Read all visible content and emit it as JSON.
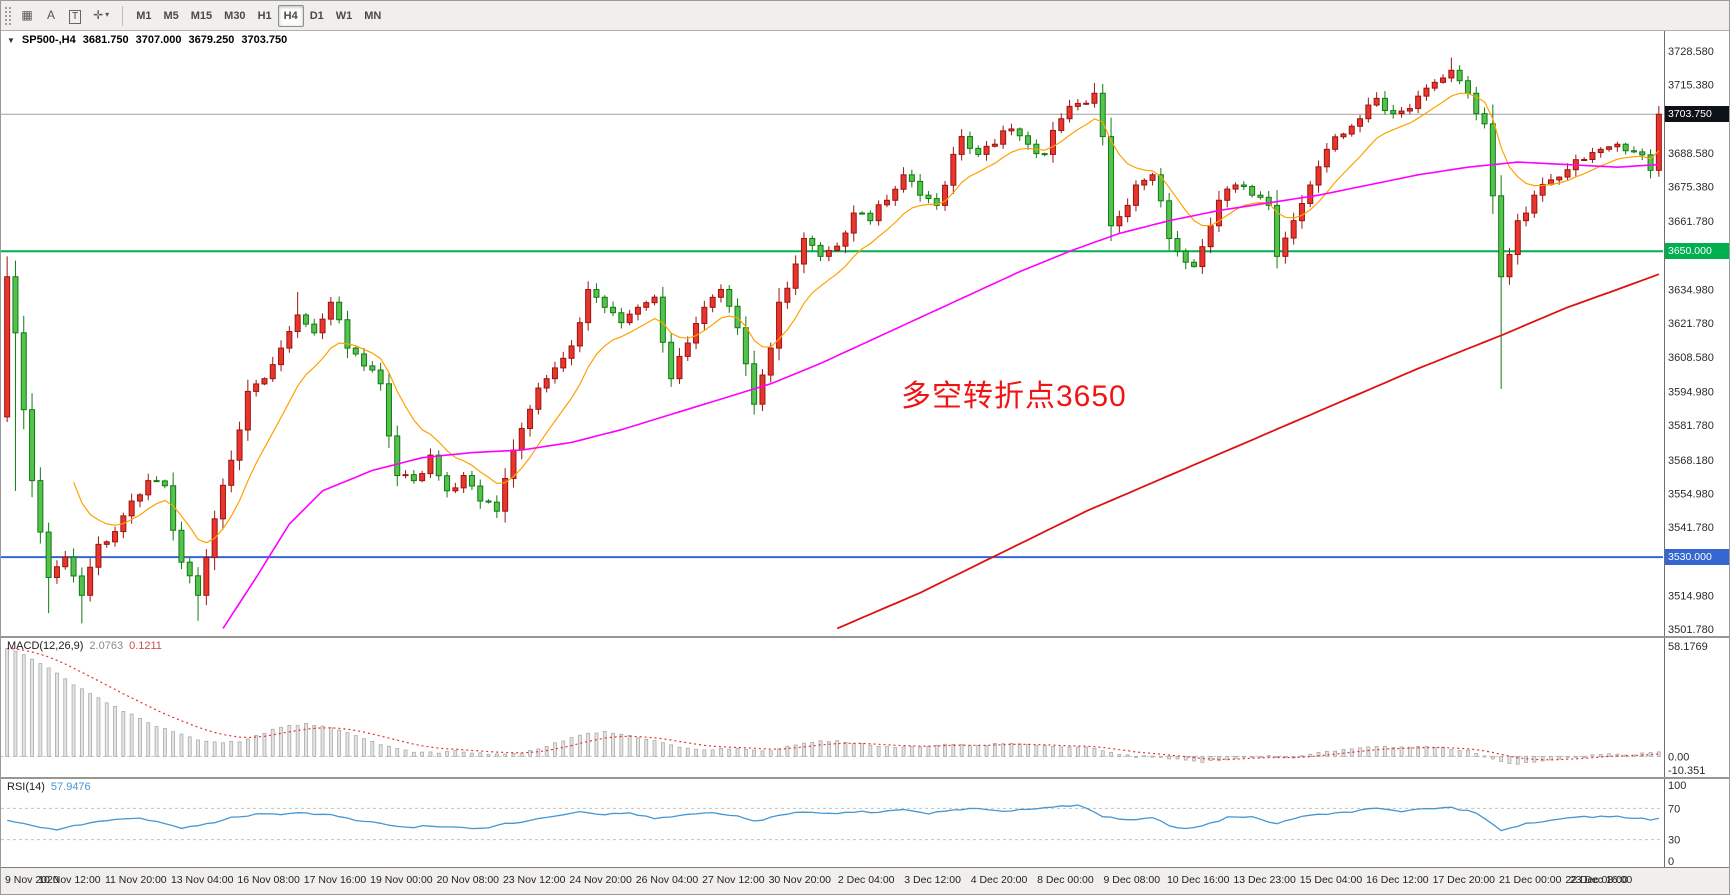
{
  "toolbar": {
    "icon_buttons": [
      {
        "name": "chart-grid",
        "glyph": "▦"
      },
      {
        "name": "cursor-a",
        "glyph": "A"
      },
      {
        "name": "text-label",
        "glyph": "T",
        "boxed": true
      },
      {
        "name": "draw-tools",
        "glyph": "✛",
        "caret": "▾"
      }
    ],
    "timeframes": [
      {
        "label": "M1"
      },
      {
        "label": "M5"
      },
      {
        "label": "M15"
      },
      {
        "label": "M30"
      },
      {
        "label": "H1"
      },
      {
        "label": "H4",
        "active": true
      },
      {
        "label": "D1"
      },
      {
        "label": "W1"
      },
      {
        "label": "MN"
      }
    ]
  },
  "chart": {
    "expander_icon": "▼",
    "symbol": "SP500-,H4",
    "open": "3681.750",
    "high": "3707.000",
    "low": "3679.250",
    "close": "3703.750",
    "annotation": {
      "text": "多空转折点3650",
      "color": "#f01414"
    }
  },
  "indicators": {
    "macd": {
      "label": "MACD(12,26,9)",
      "value_main": "2.0763",
      "value_signal": "0.1211",
      "axis_labels": [
        "58.1769",
        "0.00",
        "-10.351"
      ]
    },
    "rsi": {
      "label": "RSI(14)",
      "value": "57.9476",
      "axis_labels": [
        "100",
        "70",
        "30",
        "0"
      ]
    }
  },
  "colors": {
    "bull": "#e8362e",
    "bull_stroke": "#9c1410",
    "bear": "#55c24f",
    "bear_stroke": "#117a11",
    "ma_fast": "#ffa200",
    "ma_mid": "#ff00ff",
    "ma_slow": "#dd1111",
    "line_green": "#00b050",
    "line_blue": "#3566cf",
    "current_box": "#0e1117",
    "macd_bar": "#e4e4e4",
    "macd_bar_stroke": "#a6a6a6",
    "macd_signal": "#e03434",
    "rsi_line": "#4596d2"
  },
  "chart_data": {
    "type": "candlestick",
    "symbol": "SP500-,H4",
    "timeframe": "H4",
    "n_candles": 200,
    "ylim": [
      3501.78,
      3728.58
    ],
    "open_first": 3585,
    "close_waypoints": [
      [
        0,
        3640
      ],
      [
        1,
        3618
      ],
      [
        3,
        3560
      ],
      [
        5,
        3522
      ],
      [
        7,
        3530
      ],
      [
        9,
        3515
      ],
      [
        11,
        3535
      ],
      [
        13,
        3540
      ],
      [
        15,
        3552
      ],
      [
        17,
        3560
      ],
      [
        19,
        3558
      ],
      [
        21,
        3528
      ],
      [
        23,
        3515
      ],
      [
        25,
        3545
      ],
      [
        27,
        3568
      ],
      [
        29,
        3595
      ],
      [
        31,
        3600
      ],
      [
        33,
        3612
      ],
      [
        35,
        3625
      ],
      [
        37,
        3618
      ],
      [
        39,
        3630
      ],
      [
        41,
        3612
      ],
      [
        43,
        3605
      ],
      [
        45,
        3598
      ],
      [
        47,
        3562
      ],
      [
        49,
        3560
      ],
      [
        51,
        3570
      ],
      [
        53,
        3556
      ],
      [
        55,
        3562
      ],
      [
        57,
        3552
      ],
      [
        59,
        3548
      ],
      [
        61,
        3572
      ],
      [
        63,
        3588
      ],
      [
        65,
        3600
      ],
      [
        67,
        3608
      ],
      [
        69,
        3622
      ],
      [
        70,
        3635
      ],
      [
        72,
        3628
      ],
      [
        74,
        3622
      ],
      [
        76,
        3628
      ],
      [
        78,
        3632
      ],
      [
        80,
        3600
      ],
      [
        82,
        3614
      ],
      [
        84,
        3628
      ],
      [
        86,
        3635
      ],
      [
        88,
        3620
      ],
      [
        90,
        3590
      ],
      [
        92,
        3612
      ],
      [
        93,
        3630
      ],
      [
        95,
        3645
      ],
      [
        96,
        3655
      ],
      [
        98,
        3648
      ],
      [
        100,
        3652
      ],
      [
        102,
        3665
      ],
      [
        104,
        3662
      ],
      [
        106,
        3670
      ],
      [
        108,
        3680
      ],
      [
        110,
        3672
      ],
      [
        112,
        3668
      ],
      [
        114,
        3688
      ],
      [
        115,
        3695
      ],
      [
        117,
        3688
      ],
      [
        119,
        3692
      ],
      [
        121,
        3698
      ],
      [
        123,
        3692
      ],
      [
        125,
        3688
      ],
      [
        127,
        3702
      ],
      [
        129,
        3708
      ],
      [
        131,
        3712
      ],
      [
        132,
        3695
      ],
      [
        133,
        3660
      ],
      [
        135,
        3668
      ],
      [
        136,
        3676
      ],
      [
        138,
        3680
      ],
      [
        140,
        3655
      ],
      [
        141,
        3650
      ],
      [
        143,
        3644
      ],
      [
        145,
        3660
      ],
      [
        146,
        3670
      ],
      [
        148,
        3676
      ],
      [
        150,
        3672
      ],
      [
        152,
        3668
      ],
      [
        153,
        3648
      ],
      [
        155,
        3662
      ],
      [
        157,
        3676
      ],
      [
        159,
        3690
      ],
      [
        161,
        3696
      ],
      [
        163,
        3702
      ],
      [
        165,
        3710
      ],
      [
        167,
        3704
      ],
      [
        169,
        3706
      ],
      [
        171,
        3714
      ],
      [
        173,
        3718
      ],
      [
        174,
        3721
      ],
      [
        176,
        3712
      ],
      [
        178,
        3700
      ],
      [
        180,
        3640
      ],
      [
        182,
        3662
      ],
      [
        184,
        3672
      ],
      [
        186,
        3678
      ],
      [
        188,
        3682
      ],
      [
        190,
        3686
      ],
      [
        192,
        3690
      ],
      [
        194,
        3692
      ],
      [
        196,
        3689
      ],
      [
        198,
        3681.75
      ],
      [
        199,
        3703.75
      ]
    ],
    "wick_overrides": {
      "0": {
        "high": 3648,
        "low": 3583
      },
      "1": {
        "low": 3556
      },
      "5": {
        "low": 3508
      },
      "9": {
        "low": 3504
      },
      "23": {
        "low": 3505
      },
      "35": {
        "high": 3634
      },
      "131": {
        "high": 3716
      },
      "133": {
        "low": 3654
      },
      "174": {
        "high": 3726
      },
      "180": {
        "low": 3596
      },
      "199": {
        "high": 3707,
        "low": 3679.25
      }
    },
    "hlines": [
      {
        "label": "3703.750",
        "price": 3703.75,
        "type": "current"
      },
      {
        "label": "3650.000",
        "price": 3650.0,
        "type": "green"
      },
      {
        "label": "3530.000",
        "price": 3530.0,
        "type": "blue"
      }
    ],
    "price_axis_labels": [
      "3728.580",
      "3715.380",
      "3688.580",
      "3675.380",
      "3661.780",
      "3634.980",
      "3621.780",
      "3608.580",
      "3594.980",
      "3581.780",
      "3568.180",
      "3554.980",
      "3541.780",
      "3514.980",
      "3501.780"
    ],
    "ma_fast": {
      "period": 10,
      "start_index": 8
    },
    "ma_mid_waypoints": [
      [
        26,
        3502
      ],
      [
        30,
        3522
      ],
      [
        34,
        3543
      ],
      [
        38,
        3556
      ],
      [
        44,
        3564
      ],
      [
        50,
        3569
      ],
      [
        56,
        3571
      ],
      [
        62,
        3572
      ],
      [
        68,
        3575
      ],
      [
        74,
        3580
      ],
      [
        80,
        3586
      ],
      [
        86,
        3592
      ],
      [
        92,
        3598
      ],
      [
        98,
        3606
      ],
      [
        104,
        3615
      ],
      [
        110,
        3624
      ],
      [
        116,
        3633
      ],
      [
        122,
        3642
      ],
      [
        128,
        3650
      ],
      [
        134,
        3657
      ],
      [
        140,
        3662
      ],
      [
        146,
        3666
      ],
      [
        152,
        3669
      ],
      [
        158,
        3672
      ],
      [
        164,
        3676
      ],
      [
        170,
        3680
      ],
      [
        176,
        3683
      ],
      [
        182,
        3685
      ],
      [
        188,
        3684
      ],
      [
        194,
        3683
      ],
      [
        199,
        3684
      ]
    ],
    "ma_slow_waypoints": [
      [
        100,
        3502
      ],
      [
        110,
        3516
      ],
      [
        120,
        3532
      ],
      [
        130,
        3548
      ],
      [
        140,
        3562
      ],
      [
        150,
        3576
      ],
      [
        160,
        3590
      ],
      [
        170,
        3604
      ],
      [
        180,
        3617
      ],
      [
        188,
        3628
      ],
      [
        194,
        3635
      ],
      [
        199,
        3641
      ]
    ],
    "macd": {
      "ylim": [
        -10.351,
        58.1769
      ],
      "signal_period": 9,
      "waypoints": [
        [
          0,
          57
        ],
        [
          2,
          54
        ],
        [
          4,
          49
        ],
        [
          6,
          44
        ],
        [
          8,
          38
        ],
        [
          10,
          33
        ],
        [
          12,
          28
        ],
        [
          14,
          24
        ],
        [
          16,
          20
        ],
        [
          18,
          16
        ],
        [
          20,
          13
        ],
        [
          22,
          10
        ],
        [
          24,
          8
        ],
        [
          26,
          7
        ],
        [
          28,
          8
        ],
        [
          30,
          11
        ],
        [
          32,
          14
        ],
        [
          34,
          16
        ],
        [
          36,
          17
        ],
        [
          38,
          16
        ],
        [
          40,
          14
        ],
        [
          42,
          11
        ],
        [
          44,
          8
        ],
        [
          46,
          5
        ],
        [
          48,
          3
        ],
        [
          50,
          2
        ],
        [
          52,
          2
        ],
        [
          54,
          3
        ],
        [
          56,
          2
        ],
        [
          58,
          1
        ],
        [
          60,
          1
        ],
        [
          62,
          2
        ],
        [
          64,
          4
        ],
        [
          66,
          7
        ],
        [
          68,
          10
        ],
        [
          70,
          12
        ],
        [
          72,
          13
        ],
        [
          74,
          12
        ],
        [
          76,
          10
        ],
        [
          78,
          8
        ],
        [
          80,
          6
        ],
        [
          82,
          4
        ],
        [
          84,
          3
        ],
        [
          86,
          4
        ],
        [
          88,
          4
        ],
        [
          90,
          3
        ],
        [
          92,
          3
        ],
        [
          94,
          5
        ],
        [
          96,
          7
        ],
        [
          98,
          8
        ],
        [
          100,
          8
        ],
        [
          102,
          7
        ],
        [
          104,
          6
        ],
        [
          106,
          5
        ],
        [
          108,
          5
        ],
        [
          110,
          5
        ],
        [
          112,
          6
        ],
        [
          114,
          6
        ],
        [
          116,
          6
        ],
        [
          118,
          6
        ],
        [
          120,
          7
        ],
        [
          122,
          7
        ],
        [
          124,
          6
        ],
        [
          126,
          5
        ],
        [
          128,
          5
        ],
        [
          130,
          5
        ],
        [
          132,
          3
        ],
        [
          134,
          1
        ],
        [
          136,
          0
        ],
        [
          138,
          0
        ],
        [
          140,
          -1
        ],
        [
          142,
          -2
        ],
        [
          144,
          -3
        ],
        [
          146,
          -2
        ],
        [
          148,
          -1
        ],
        [
          150,
          0
        ],
        [
          152,
          0
        ],
        [
          154,
          -1
        ],
        [
          156,
          0
        ],
        [
          158,
          2
        ],
        [
          160,
          3
        ],
        [
          162,
          4
        ],
        [
          164,
          5
        ],
        [
          166,
          5
        ],
        [
          168,
          5
        ],
        [
          170,
          5
        ],
        [
          172,
          5
        ],
        [
          174,
          4
        ],
        [
          176,
          3
        ],
        [
          178,
          0
        ],
        [
          180,
          -3
        ],
        [
          182,
          -4
        ],
        [
          184,
          -3
        ],
        [
          186,
          -2
        ],
        [
          188,
          -1
        ],
        [
          190,
          0
        ],
        [
          192,
          1
        ],
        [
          194,
          1
        ],
        [
          196,
          1
        ],
        [
          198,
          2
        ],
        [
          199,
          2.08
        ]
      ]
    },
    "rsi": {
      "ylim": [
        0,
        100
      ],
      "levels": [
        70,
        30
      ],
      "waypoints": [
        [
          0,
          55
        ],
        [
          3,
          48
        ],
        [
          6,
          42
        ],
        [
          9,
          50
        ],
        [
          12,
          55
        ],
        [
          15,
          58
        ],
        [
          18,
          54
        ],
        [
          21,
          45
        ],
        [
          24,
          50
        ],
        [
          27,
          58
        ],
        [
          30,
          62
        ],
        [
          33,
          63
        ],
        [
          36,
          64
        ],
        [
          39,
          62
        ],
        [
          42,
          55
        ],
        [
          45,
          50
        ],
        [
          48,
          45
        ],
        [
          51,
          48
        ],
        [
          54,
          46
        ],
        [
          57,
          44
        ],
        [
          60,
          50
        ],
        [
          63,
          55
        ],
        [
          66,
          60
        ],
        [
          69,
          66
        ],
        [
          72,
          62
        ],
        [
          75,
          64
        ],
        [
          78,
          57
        ],
        [
          81,
          60
        ],
        [
          84,
          65
        ],
        [
          87,
          62
        ],
        [
          90,
          54
        ],
        [
          93,
          60
        ],
        [
          96,
          66
        ],
        [
          99,
          63
        ],
        [
          102,
          65
        ],
        [
          105,
          66
        ],
        [
          108,
          68
        ],
        [
          111,
          64
        ],
        [
          114,
          67
        ],
        [
          117,
          70
        ],
        [
          120,
          66
        ],
        [
          123,
          69
        ],
        [
          126,
          72
        ],
        [
          129,
          74
        ],
        [
          132,
          60
        ],
        [
          135,
          55
        ],
        [
          138,
          58
        ],
        [
          141,
          44
        ],
        [
          144,
          48
        ],
        [
          147,
          58
        ],
        [
          150,
          60
        ],
        [
          153,
          50
        ],
        [
          156,
          60
        ],
        [
          159,
          63
        ],
        [
          162,
          66
        ],
        [
          165,
          70
        ],
        [
          168,
          66
        ],
        [
          171,
          69
        ],
        [
          174,
          71
        ],
        [
          177,
          65
        ],
        [
          180,
          42
        ],
        [
          183,
          50
        ],
        [
          186,
          55
        ],
        [
          189,
          58
        ],
        [
          192,
          60
        ],
        [
          195,
          59
        ],
        [
          198,
          56
        ],
        [
          199,
          57.95
        ]
      ]
    },
    "time_labels": [
      "9 Nov 2020",
      "10 Nov 12:00",
      "11 Nov 20:00",
      "13 Nov 04:00",
      "16 Nov 08:00",
      "17 Nov 16:00",
      "19 Nov 00:00",
      "20 Nov 08:00",
      "23 Nov 12:00",
      "24 Nov 20:00",
      "26 Nov 04:00",
      "27 Nov 12:00",
      "30 Nov 20:00",
      "2 Dec 04:00",
      "3 Dec 12:00",
      "4 Dec 20:00",
      "8 Dec 00:00",
      "9 Dec 08:00",
      "10 Dec 16:00",
      "13 Dec 23:00",
      "15 Dec 04:00",
      "16 Dec 12:00",
      "17 Dec 20:00",
      "21 Dec 00:00",
      "22 Dec 08:00",
      "23 Dec 16:00"
    ]
  }
}
